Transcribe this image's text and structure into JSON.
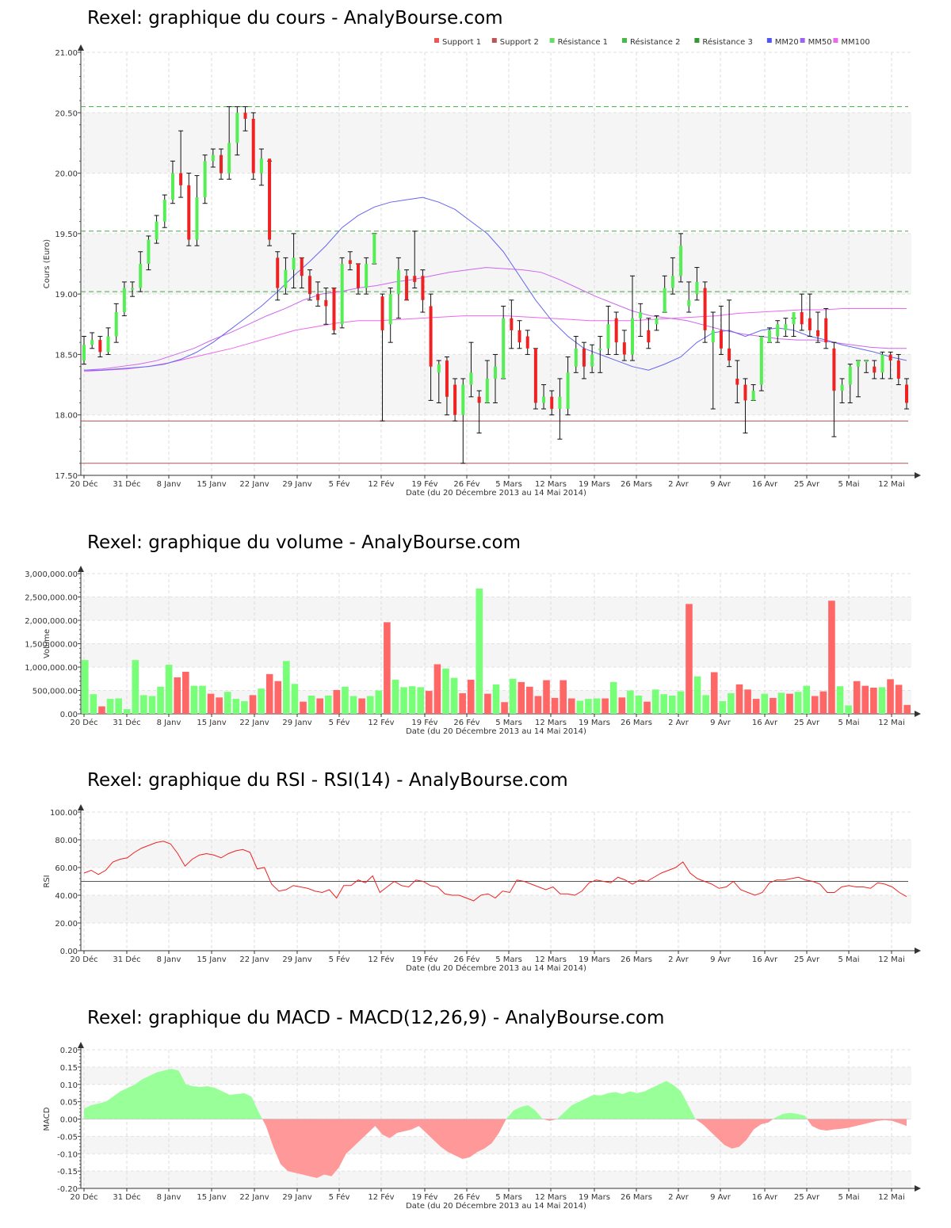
{
  "x_axis_caption": "Date (du 20 Décembre 2013 au 14 Mai 2014)",
  "x_tick_labels": [
    "20 Déc",
    "31 Déc",
    "8 Janv",
    "15 Janv",
    "22 Janv",
    "29 Janv",
    "5 Fév",
    "12 Fév",
    "19 Fév",
    "26 Fév",
    "5 Mars",
    "12 Mars",
    "19 Mars",
    "26 Mars",
    "2 Avr",
    "9 Avr",
    "16 Avr",
    "25 Avr",
    "5 Mai",
    "12 Mai"
  ],
  "colors": {
    "up": "#55ee55",
    "down": "#ee2222",
    "vol_up": "#77ff77",
    "vol_down": "#ff6666",
    "mm20": "#6666ee",
    "mm50": "#cc66ee",
    "mm100": "#ee66ee",
    "resistance": "#44aa44",
    "support": "#aa5555",
    "rsi": "#ee2222",
    "macd_pos": "#99ff99",
    "macd_neg": "#ff9999"
  },
  "chart_data": [
    {
      "id": "price",
      "type": "candlestick",
      "title": "Rexel: graphique du cours - AnalyBourse.com",
      "ylabel": "Cours (Euro)",
      "ylim": [
        17.5,
        21.0
      ],
      "yticks": [
        "21.00",
        "20.50",
        "20.00",
        "19.50",
        "19.00",
        "18.50",
        "18.00",
        "17.50"
      ],
      "legend": [
        "Support 1",
        "Support 2",
        "Résistance 1",
        "Résistance 2",
        "Résistance 3",
        "MM20",
        "MM50",
        "MM100"
      ],
      "legend_colors": [
        "#ee5555",
        "#bb5555",
        "#66dd66",
        "#44bb44",
        "#339933",
        "#5555ee",
        "#9966ee",
        "#ee66ee"
      ],
      "levels": {
        "support_1": 17.95,
        "support_2": 17.6,
        "resistance_1": 19.02,
        "resistance_2": 19.52,
        "resistance_3": 20.55
      },
      "candles": [
        [
          18.45,
          18.58,
          18.65,
          18.42
        ],
        [
          18.58,
          18.62,
          18.68,
          18.55
        ],
        [
          18.62,
          18.52,
          18.65,
          18.48
        ],
        [
          18.52,
          18.65,
          18.72,
          18.5
        ],
        [
          18.65,
          18.85,
          18.92,
          18.6
        ],
        [
          18.85,
          19.05,
          19.1,
          18.82
        ],
        [
          19.05,
          19.05,
          19.1,
          18.98
        ],
        [
          19.05,
          19.25,
          19.35,
          19.02
        ],
        [
          19.25,
          19.45,
          19.48,
          19.2
        ],
        [
          19.45,
          19.6,
          19.65,
          19.42
        ],
        [
          19.6,
          19.78,
          19.82,
          19.55
        ],
        [
          19.78,
          20.0,
          20.1,
          19.75
        ],
        [
          20.0,
          19.9,
          20.35,
          19.8
        ],
        [
          19.9,
          19.45,
          20.0,
          19.4
        ],
        [
          19.45,
          19.8,
          19.98,
          19.4
        ],
        [
          19.8,
          20.1,
          20.15,
          19.75
        ],
        [
          20.1,
          20.15,
          20.2,
          20.05
        ],
        [
          20.15,
          20.0,
          20.2,
          19.95
        ],
        [
          20.0,
          20.25,
          20.55,
          19.95
        ],
        [
          20.25,
          20.5,
          20.55,
          20.15
        ],
        [
          20.5,
          20.45,
          20.55,
          20.35
        ],
        [
          20.45,
          20.0,
          20.5,
          19.95
        ],
        [
          20.0,
          20.12,
          20.2,
          19.9
        ],
        [
          20.12,
          19.45,
          20.1,
          19.4
        ],
        [
          19.3,
          19.05,
          19.35,
          18.95
        ],
        [
          19.05,
          19.2,
          19.3,
          19.0
        ],
        [
          19.2,
          19.3,
          19.5,
          19.05
        ],
        [
          19.3,
          19.15,
          19.3,
          19.05
        ],
        [
          19.15,
          19.0,
          19.2,
          18.95
        ],
        [
          19.0,
          18.95,
          19.1,
          18.9
        ],
        [
          18.95,
          18.9,
          19.05,
          18.75
        ],
        [
          19.05,
          18.7,
          19.05,
          18.67
        ],
        [
          18.75,
          19.25,
          19.3,
          18.72
        ],
        [
          19.28,
          19.25,
          19.35,
          19.2
        ],
        [
          19.25,
          19.05,
          19.25,
          19.0
        ],
        [
          19.05,
          19.25,
          19.3,
          19.0
        ],
        [
          19.25,
          19.5,
          19.5,
          19.25
        ],
        [
          18.98,
          18.7,
          19.0,
          17.95
        ],
        [
          18.75,
          19.0,
          19.05,
          18.6
        ],
        [
          19.0,
          19.2,
          19.3,
          18.8
        ],
        [
          19.15,
          18.95,
          19.2,
          18.95
        ],
        [
          19.15,
          19.1,
          19.52,
          19.05
        ],
        [
          19.15,
          18.95,
          19.2,
          18.85
        ],
        [
          18.9,
          18.4,
          19.0,
          18.12
        ],
        [
          18.35,
          18.42,
          18.45,
          18.1
        ],
        [
          18.45,
          18.15,
          18.48,
          18.0
        ],
        [
          18.25,
          18.0,
          18.3,
          17.95
        ],
        [
          18.0,
          18.25,
          18.3,
          17.6
        ],
        [
          18.25,
          18.35,
          18.6,
          18.15
        ],
        [
          18.15,
          18.1,
          18.2,
          17.85
        ],
        [
          18.1,
          18.3,
          18.45,
          18.1
        ],
        [
          18.3,
          18.4,
          18.5,
          18.1
        ],
        [
          18.3,
          18.8,
          18.9,
          18.3
        ],
        [
          18.8,
          18.7,
          18.95,
          18.55
        ],
        [
          18.7,
          18.6,
          18.78,
          18.55
        ],
        [
          18.65,
          18.55,
          18.7,
          18.5
        ],
        [
          18.55,
          18.1,
          18.55,
          18.05
        ],
        [
          18.1,
          18.15,
          18.25,
          18.05
        ],
        [
          18.15,
          18.05,
          18.2,
          18.0
        ],
        [
          18.05,
          18.15,
          18.3,
          17.8
        ],
        [
          18.05,
          18.35,
          18.48,
          18.0
        ],
        [
          18.4,
          18.55,
          18.65,
          18.35
        ],
        [
          18.55,
          18.4,
          18.6,
          18.3
        ],
        [
          18.4,
          18.5,
          18.58,
          18.35
        ],
        [
          18.55,
          18.55,
          18.65,
          18.35
        ],
        [
          18.55,
          18.75,
          18.9,
          18.5
        ],
        [
          18.8,
          18.6,
          18.85,
          18.5
        ],
        [
          18.6,
          18.5,
          18.7,
          18.45
        ],
        [
          18.5,
          18.8,
          19.15,
          18.45
        ],
        [
          18.8,
          18.85,
          18.92,
          18.65
        ],
        [
          18.7,
          18.6,
          18.8,
          18.55
        ],
        [
          18.75,
          18.8,
          18.82,
          18.7
        ],
        [
          18.85,
          19.05,
          19.15,
          18.85
        ],
        [
          19.05,
          19.15,
          19.3,
          19.0
        ],
        [
          19.15,
          19.4,
          19.5,
          19.1
        ],
        [
          18.9,
          18.95,
          19.1,
          18.85
        ],
        [
          19.0,
          19.1,
          19.22,
          18.95
        ],
        [
          19.05,
          18.7,
          19.1,
          18.6
        ],
        [
          18.6,
          18.7,
          18.85,
          18.05
        ],
        [
          18.7,
          18.55,
          18.9,
          18.5
        ],
        [
          18.55,
          18.45,
          18.95,
          18.4
        ],
        [
          18.3,
          18.25,
          18.45,
          18.1
        ],
        [
          18.25,
          18.12,
          18.3,
          17.85
        ],
        [
          18.12,
          18.2,
          18.25,
          18.12
        ],
        [
          18.25,
          18.65,
          18.65,
          18.2
        ],
        [
          18.6,
          18.7,
          18.72,
          18.6
        ],
        [
          18.65,
          18.75,
          18.78,
          18.6
        ],
        [
          18.7,
          18.75,
          18.8,
          18.65
        ],
        [
          18.75,
          18.85,
          18.8,
          18.65
        ],
        [
          18.85,
          18.75,
          19.0,
          18.7
        ],
        [
          18.8,
          18.7,
          19.0,
          18.65
        ],
        [
          18.7,
          18.65,
          18.85,
          18.6
        ],
        [
          18.8,
          18.6,
          18.88,
          18.55
        ],
        [
          18.55,
          18.2,
          18.6,
          17.82
        ],
        [
          18.2,
          18.25,
          18.3,
          18.1
        ],
        [
          18.25,
          18.4,
          18.42,
          18.1
        ],
        [
          18.4,
          18.45,
          18.45,
          18.15
        ],
        [
          18.45,
          18.45,
          18.45,
          18.35
        ],
        [
          18.4,
          18.35,
          18.45,
          18.3
        ],
        [
          18.35,
          18.5,
          18.52,
          18.3
        ],
        [
          18.5,
          18.45,
          18.52,
          18.3
        ],
        [
          18.45,
          18.3,
          18.5,
          18.25
        ],
        [
          18.25,
          18.1,
          18.3,
          18.05
        ]
      ],
      "mm20": [
        18.37,
        18.37,
        18.38,
        18.39,
        18.4,
        18.42,
        18.46,
        18.52,
        18.6,
        18.7,
        18.8,
        18.9,
        19.02,
        19.15,
        19.27,
        19.4,
        19.55,
        19.65,
        19.72,
        19.76,
        19.78,
        19.8,
        19.76,
        19.7,
        19.6,
        19.5,
        19.35,
        19.15,
        18.95,
        18.78,
        18.65,
        18.55,
        18.5,
        18.45,
        18.4,
        18.37,
        18.42,
        18.48,
        18.6,
        18.68,
        18.7,
        18.65,
        18.7,
        18.72,
        18.7,
        18.65,
        18.62,
        18.58,
        18.55,
        18.52,
        18.48,
        18.45
      ],
      "mm50": [
        18.37,
        18.38,
        18.4,
        18.42,
        18.45,
        18.5,
        18.55,
        18.62,
        18.68,
        18.75,
        18.82,
        18.88,
        18.95,
        19.0,
        19.02,
        19.05,
        19.07,
        19.1,
        19.12,
        19.15,
        19.18,
        19.2,
        19.22,
        19.21,
        19.2,
        19.18,
        19.12,
        19.05,
        18.98,
        18.92,
        18.86,
        18.82,
        18.8,
        18.78,
        18.74,
        18.7,
        18.67,
        18.65,
        18.63,
        18.62,
        18.62,
        18.6,
        18.58,
        18.56,
        18.55,
        18.55
      ],
      "mm100": [
        18.36,
        18.37,
        18.38,
        18.4,
        18.43,
        18.47,
        18.51,
        18.55,
        18.6,
        18.65,
        18.7,
        18.73,
        18.76,
        18.78,
        18.78,
        18.79,
        18.8,
        18.81,
        18.82,
        18.82,
        18.82,
        18.81,
        18.8,
        18.79,
        18.78,
        18.78,
        18.78,
        18.79,
        18.8,
        18.81,
        18.82,
        18.84,
        18.85,
        18.86,
        18.87,
        18.87,
        18.88,
        18.88,
        18.88,
        18.88
      ]
    },
    {
      "id": "volume",
      "type": "bar",
      "title": "Rexel: graphique du volume - AnalyBourse.com",
      "ylabel": "Volume",
      "ylim": [
        0,
        3000000
      ],
      "yticks": [
        "3,000,000.00",
        "2,500,000.00",
        "2,000,000.00",
        "1,500,000.00",
        "1,000,000.00",
        "500,000.00",
        "0.00"
      ],
      "values": [
        1150000,
        420000,
        160000,
        320000,
        330000,
        100000,
        1150000,
        400000,
        380000,
        580000,
        1050000,
        780000,
        900000,
        600000,
        600000,
        430000,
        350000,
        470000,
        320000,
        270000,
        400000,
        540000,
        850000,
        700000,
        1130000,
        640000,
        260000,
        390000,
        330000,
        390000,
        510000,
        580000,
        380000,
        330000,
        380000,
        500000,
        1960000,
        730000,
        570000,
        590000,
        570000,
        490000,
        1060000,
        970000,
        770000,
        440000,
        730000,
        2680000,
        430000,
        630000,
        250000,
        750000,
        680000,
        580000,
        380000,
        720000,
        340000,
        720000,
        330000,
        280000,
        320000,
        330000,
        330000,
        680000,
        350000,
        500000,
        390000,
        260000,
        520000,
        420000,
        390000,
        480000,
        2350000,
        800000,
        400000,
        890000,
        270000,
        440000,
        630000,
        520000,
        320000,
        430000,
        340000,
        450000,
        430000,
        470000,
        600000,
        380000,
        480000,
        2420000,
        590000,
        180000,
        700000,
        600000,
        560000,
        570000,
        740000,
        620000,
        190000
      ],
      "up": [
        1,
        1,
        0,
        1,
        1,
        1,
        1,
        1,
        1,
        1,
        1,
        0,
        0,
        1,
        1,
        0,
        0,
        1,
        1,
        1,
        0,
        1,
        0,
        0,
        1,
        1,
        0,
        1,
        0,
        1,
        0,
        1,
        1,
        0,
        1,
        1,
        0,
        1,
        1,
        1,
        1,
        0,
        0,
        1,
        1,
        0,
        0,
        1,
        0,
        1,
        0,
        1,
        0,
        0,
        0,
        0,
        0,
        0,
        0,
        1,
        1,
        1,
        0,
        1,
        0,
        1,
        1,
        0,
        1,
        1,
        1,
        1,
        0,
        1,
        1,
        0,
        1,
        1,
        0,
        0,
        0,
        1,
        0,
        1,
        0,
        1,
        1,
        0,
        0,
        0,
        1,
        1,
        0,
        0,
        0,
        1,
        0,
        0,
        0
      ]
    },
    {
      "id": "rsi",
      "type": "line",
      "title": "Rexel: graphique du RSI - RSI(14) - AnalyBourse.com",
      "ylabel": "RSI",
      "ylim": [
        0,
        100
      ],
      "yticks": [
        "100.00",
        "80.00",
        "60.00",
        "40.00",
        "20.00",
        "0.00"
      ],
      "reference": 50,
      "values": [
        56,
        58,
        55,
        58,
        64,
        66,
        67,
        71,
        74,
        76,
        78,
        79,
        77,
        70,
        61,
        66,
        69,
        70,
        69,
        67,
        70,
        72,
        73,
        71,
        59,
        60,
        48,
        43,
        44,
        47,
        46,
        45,
        43,
        42,
        44,
        38,
        47,
        47,
        51,
        49,
        54,
        42,
        46,
        50,
        47,
        46,
        51,
        50,
        47,
        46,
        41,
        40,
        40,
        38,
        36,
        40,
        41,
        38,
        43,
        42,
        51,
        50,
        48,
        46,
        44,
        46,
        41,
        41,
        40,
        43,
        49,
        51,
        50,
        49,
        53,
        51,
        48,
        51,
        50,
        53,
        56,
        58,
        60,
        64,
        56,
        52,
        50,
        48,
        45,
        46,
        50,
        44,
        42,
        40,
        42,
        49,
        51,
        51,
        52,
        53,
        51,
        50,
        48,
        42,
        42,
        46,
        47,
        46,
        46,
        45,
        49,
        48,
        46,
        42,
        39
      ]
    },
    {
      "id": "macd",
      "type": "area",
      "title": "Rexel: graphique du MACD - MACD(12,26,9) - AnalyBourse.com",
      "ylabel": "MACD",
      "ylim": [
        -0.2,
        0.2
      ],
      "yticks": [
        "0.20",
        "0.15",
        "0.10",
        "0.05",
        "0.00",
        "-0.05",
        "-0.10",
        "-0.15",
        "-0.20"
      ],
      "values": [
        0.03,
        0.04,
        0.045,
        0.05,
        0.065,
        0.08,
        0.09,
        0.1,
        0.115,
        0.125,
        0.135,
        0.14,
        0.145,
        0.14,
        0.1,
        0.095,
        0.093,
        0.095,
        0.09,
        0.08,
        0.07,
        0.072,
        0.075,
        0.065,
        0.02,
        -0.02,
        -0.08,
        -0.13,
        -0.15,
        -0.155,
        -0.16,
        -0.165,
        -0.17,
        -0.16,
        -0.165,
        -0.14,
        -0.1,
        -0.08,
        -0.06,
        -0.04,
        -0.02,
        -0.045,
        -0.055,
        -0.04,
        -0.035,
        -0.03,
        -0.02,
        -0.04,
        -0.06,
        -0.08,
        -0.095,
        -0.105,
        -0.115,
        -0.11,
        -0.095,
        -0.085,
        -0.07,
        -0.04,
        0.0,
        0.025,
        0.035,
        0.04,
        0.025,
        0.0,
        -0.005,
        0.0,
        0.02,
        0.04,
        0.05,
        0.06,
        0.07,
        0.068,
        0.075,
        0.078,
        0.072,
        0.08,
        0.075,
        0.08,
        0.09,
        0.1,
        0.11,
        0.098,
        0.08,
        0.04,
        0.0,
        -0.015,
        -0.035,
        -0.055,
        -0.075,
        -0.085,
        -0.08,
        -0.06,
        -0.03,
        -0.015,
        -0.01,
        0.005,
        0.015,
        0.018,
        0.015,
        0.01,
        -0.02,
        -0.03,
        -0.033,
        -0.03,
        -0.028,
        -0.025,
        -0.02,
        -0.015,
        -0.01,
        -0.005,
        -0.003,
        -0.005,
        -0.012,
        -0.02
      ]
    }
  ]
}
